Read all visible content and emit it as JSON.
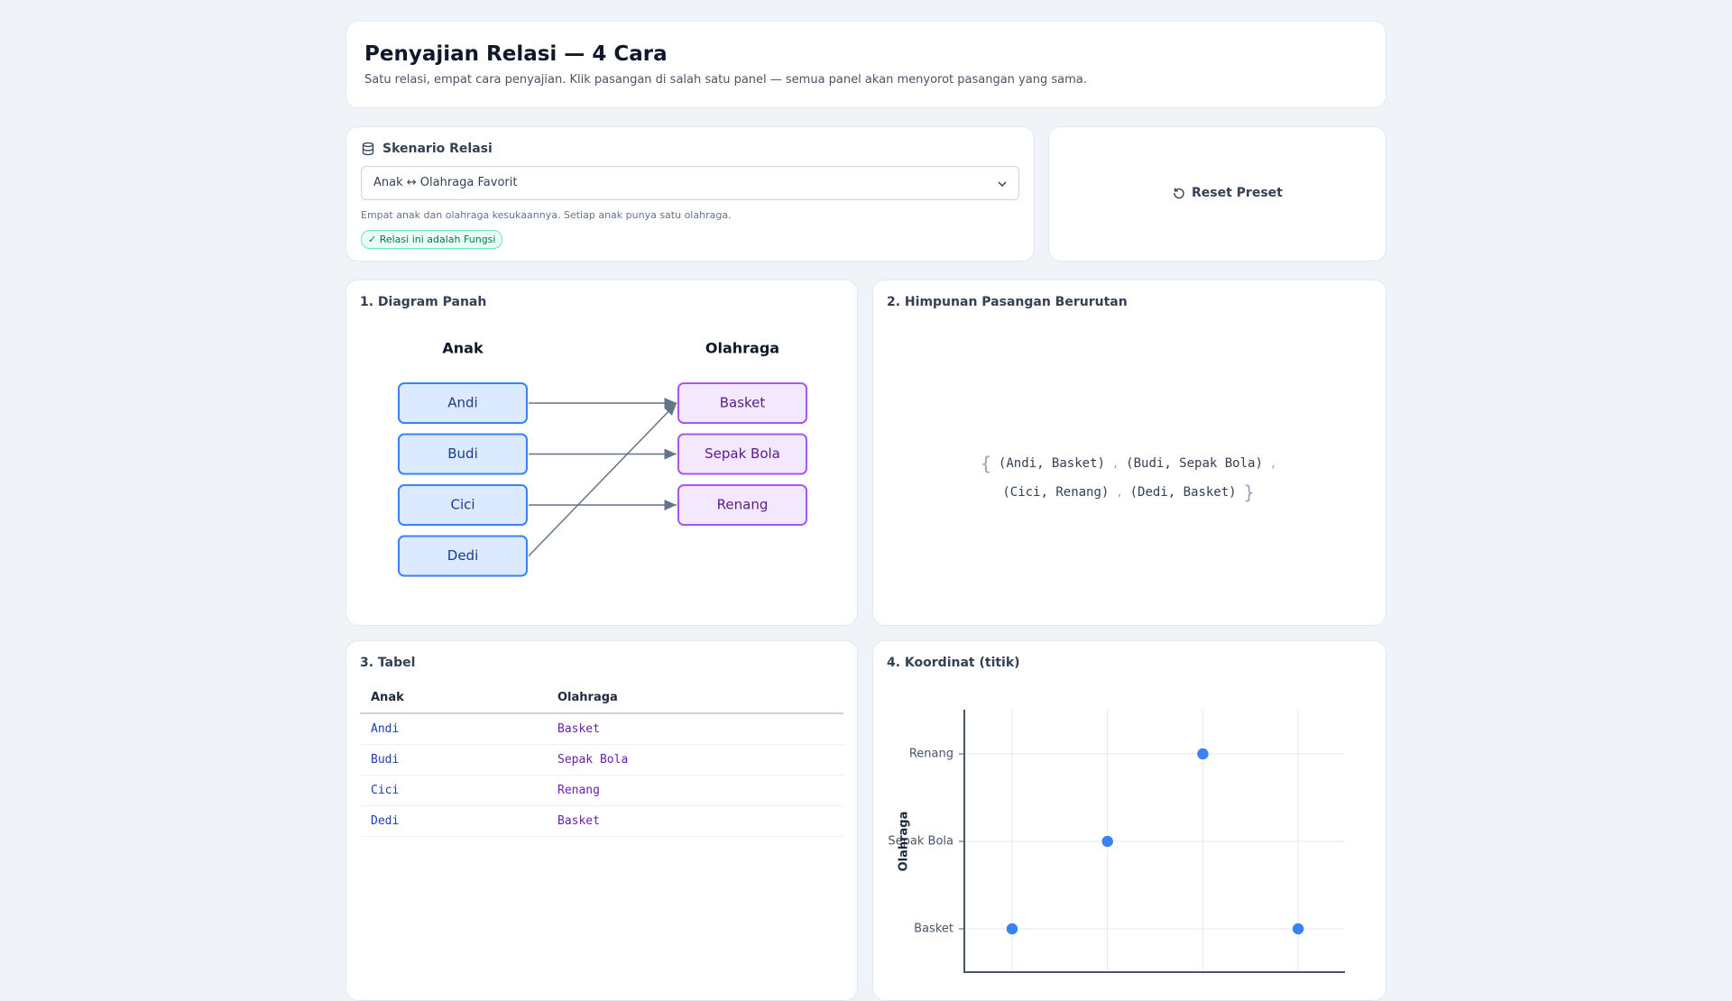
{
  "header": {
    "title": "Penyajian Relasi — 4 Cara",
    "subtitle": "Satu relasi, empat cara penyajian. Klik pasangan di salah satu panel — semua panel akan menyorot pasangan yang sama."
  },
  "scenario": {
    "label": "Skenario Relasi",
    "selected": "Anak ↔ Olahraga Favorit",
    "description": "Empat anak dan olahraga kesukaannya. Setiap anak punya satu olahraga.",
    "badge": "✓ Relasi ini adalah Fungsi"
  },
  "reset_button": "Reset Preset",
  "arrow_diagram": {
    "title": "1. Diagram Panah",
    "domain": {
      "title": "Anak",
      "items": [
        "Andi",
        "Budi",
        "Cici",
        "Dedi"
      ]
    },
    "codomain": {
      "title": "Olahraga",
      "items": [
        "Basket",
        "Sepak Bola",
        "Renang"
      ]
    }
  },
  "ordered_pairs": {
    "title": "2. Himpunan Pasangan Berurutan",
    "open": "{",
    "close": "}",
    "separator": ",",
    "items": [
      "(Andi, Basket)",
      "(Budi, Sepak Bola)",
      "(Cici, Renang)",
      "(Dedi, Basket)"
    ]
  },
  "table": {
    "title": "3. Tabel",
    "columns": [
      "Anak",
      "Olahraga"
    ],
    "rows": [
      [
        "Andi",
        "Basket"
      ],
      [
        "Budi",
        "Sepak Bola"
      ],
      [
        "Cici",
        "Renang"
      ],
      [
        "Dedi",
        "Basket"
      ]
    ]
  },
  "coordinate": {
    "title": "4. Koordinat (titik)",
    "y_label": "Olahraga"
  }
}
